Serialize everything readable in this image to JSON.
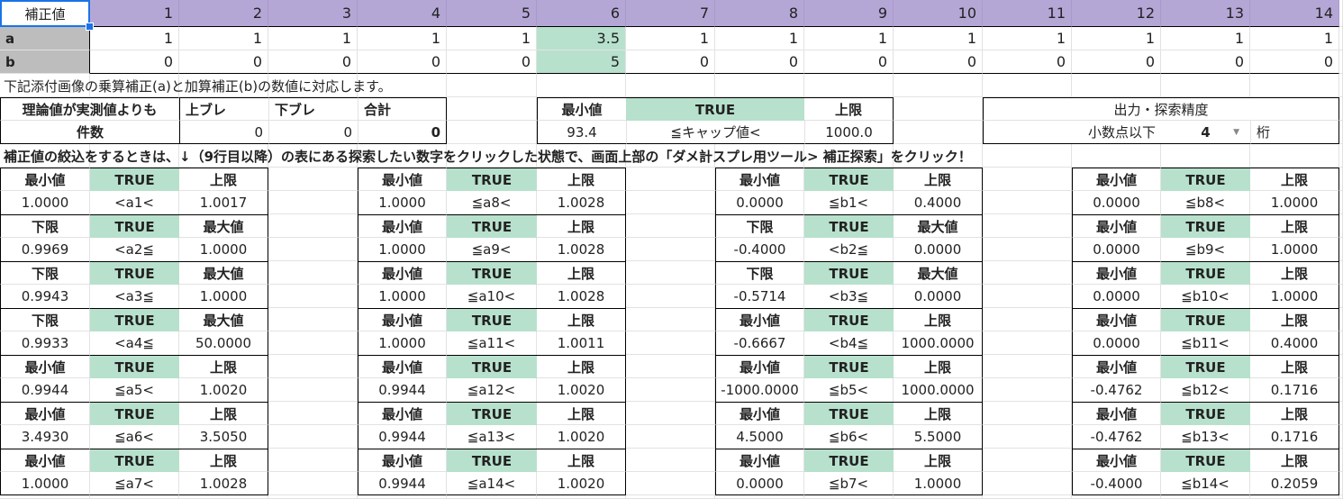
{
  "colors": {
    "header_purple": "#b4a7d6",
    "label_gray": "#bdbdbd",
    "true_green": "#b7e1cd",
    "selection_blue": "#1a73e8"
  },
  "header": {
    "corner": "補正値",
    "columns": [
      "1",
      "2",
      "3",
      "4",
      "5",
      "6",
      "7",
      "8",
      "9",
      "10",
      "11",
      "12",
      "13",
      "14"
    ]
  },
  "rows": [
    {
      "label": "a",
      "values": [
        "1",
        "1",
        "1",
        "1",
        "1",
        "3.5",
        "1",
        "1",
        "1",
        "1",
        "1",
        "1",
        "1",
        "1"
      ]
    },
    {
      "label": "b",
      "values": [
        "0",
        "0",
        "0",
        "0",
        "0",
        "5",
        "0",
        "0",
        "0",
        "0",
        "0",
        "0",
        "0",
        "0"
      ]
    }
  ],
  "note": "下記添付画像の乗算補正(a)と加算補正(b)の数値に対応します。",
  "count_table": {
    "title": "理論値が実測値よりも",
    "over": "上ブレ",
    "under": "下ブレ",
    "total": "合計",
    "row_label": "件数",
    "over_value": "0",
    "under_value": "0",
    "total_value": "0"
  },
  "cap_table": {
    "min_label": "最小値",
    "status": "TRUE",
    "max_label": "上限",
    "min": "93.4",
    "cond": "≦キャップ値<",
    "max": "1000.0"
  },
  "precision": {
    "title": "出力・探索精度",
    "label": "小数点以下",
    "value": "4",
    "unit": "桁",
    "dropdown_icon": "triangle-down-icon"
  },
  "instruction": "補正値の絞込をするときは、↓（9行目以降）の表にある探索したい数字をクリックした状態で、画面上部の「ダメ計スプレ用ツール> 補正探索」をクリック！",
  "groups": [
    [
      {
        "l": "最小値",
        "s": "TRUE",
        "r": "上限",
        "min": "1.0000",
        "cond": "<a1<",
        "max": "1.0017"
      },
      {
        "l": "下限",
        "s": "TRUE",
        "r": "最大値",
        "min": "0.9969",
        "cond": "<a2≦",
        "max": "1.0000"
      },
      {
        "l": "下限",
        "s": "TRUE",
        "r": "最大値",
        "min": "0.9943",
        "cond": "<a3≦",
        "max": "1.0000"
      },
      {
        "l": "下限",
        "s": "TRUE",
        "r": "最大値",
        "min": "0.9933",
        "cond": "<a4≦",
        "max": "50.0000"
      },
      {
        "l": "最小値",
        "s": "TRUE",
        "r": "上限",
        "min": "0.9944",
        "cond": "≦a5<",
        "max": "1.0020"
      },
      {
        "l": "最小値",
        "s": "TRUE",
        "r": "上限",
        "min": "3.4930",
        "cond": "≦a6<",
        "max": "3.5050"
      },
      {
        "l": "最小値",
        "s": "TRUE",
        "r": "上限",
        "min": "1.0000",
        "cond": "≦a7<",
        "max": "1.0028"
      }
    ],
    [
      {
        "l": "最小値",
        "s": "TRUE",
        "r": "上限",
        "min": "1.0000",
        "cond": "≦a8<",
        "max": "1.0028"
      },
      {
        "l": "最小値",
        "s": "TRUE",
        "r": "上限",
        "min": "1.0000",
        "cond": "≦a9<",
        "max": "1.0028"
      },
      {
        "l": "最小値",
        "s": "TRUE",
        "r": "上限",
        "min": "1.0000",
        "cond": "≦a10<",
        "max": "1.0028"
      },
      {
        "l": "最小値",
        "s": "TRUE",
        "r": "上限",
        "min": "1.0000",
        "cond": "≦a11<",
        "max": "1.0011"
      },
      {
        "l": "最小値",
        "s": "TRUE",
        "r": "上限",
        "min": "0.9944",
        "cond": "≦a12<",
        "max": "1.0020"
      },
      {
        "l": "最小値",
        "s": "TRUE",
        "r": "上限",
        "min": "0.9944",
        "cond": "≦a13<",
        "max": "1.0020"
      },
      {
        "l": "最小値",
        "s": "TRUE",
        "r": "上限",
        "min": "0.9944",
        "cond": "≦a14<",
        "max": "1.0020"
      }
    ],
    [
      {
        "l": "最小値",
        "s": "TRUE",
        "r": "上限",
        "min": "0.0000",
        "cond": "≦b1<",
        "max": "0.4000"
      },
      {
        "l": "下限",
        "s": "TRUE",
        "r": "最大値",
        "min": "-0.4000",
        "cond": "<b2≦",
        "max": "0.0000"
      },
      {
        "l": "下限",
        "s": "TRUE",
        "r": "最大値",
        "min": "-0.5714",
        "cond": "<b3≦",
        "max": "0.0000"
      },
      {
        "l": "最小値",
        "s": "TRUE",
        "r": "上限",
        "min": "-0.6667",
        "cond": "<b4≦",
        "max": "1000.0000"
      },
      {
        "l": "最小値",
        "s": "TRUE",
        "r": "上限",
        "min": "-1000.0000",
        "cond": "≦b5<",
        "max": "1000.0000"
      },
      {
        "l": "最小値",
        "s": "TRUE",
        "r": "上限",
        "min": "4.5000",
        "cond": "≦b6<",
        "max": "5.5000"
      },
      {
        "l": "最小値",
        "s": "TRUE",
        "r": "上限",
        "min": "0.0000",
        "cond": "≦b7<",
        "max": "1.0000"
      }
    ],
    [
      {
        "l": "最小値",
        "s": "TRUE",
        "r": "上限",
        "min": "0.0000",
        "cond": "≦b8<",
        "max": "1.0000"
      },
      {
        "l": "最小値",
        "s": "TRUE",
        "r": "上限",
        "min": "0.0000",
        "cond": "≦b9<",
        "max": "1.0000"
      },
      {
        "l": "最小値",
        "s": "TRUE",
        "r": "上限",
        "min": "0.0000",
        "cond": "≦b10<",
        "max": "1.0000"
      },
      {
        "l": "最小値",
        "s": "TRUE",
        "r": "上限",
        "min": "0.0000",
        "cond": "≦b11<",
        "max": "0.4000"
      },
      {
        "l": "最小値",
        "s": "TRUE",
        "r": "上限",
        "min": "-0.4762",
        "cond": "≦b12<",
        "max": "0.1716"
      },
      {
        "l": "最小値",
        "s": "TRUE",
        "r": "上限",
        "min": "-0.4762",
        "cond": "≦b13<",
        "max": "0.1716"
      },
      {
        "l": "最小値",
        "s": "TRUE",
        "r": "上限",
        "min": "-0.4000",
        "cond": "≦b14<",
        "max": "0.2059"
      }
    ]
  ]
}
